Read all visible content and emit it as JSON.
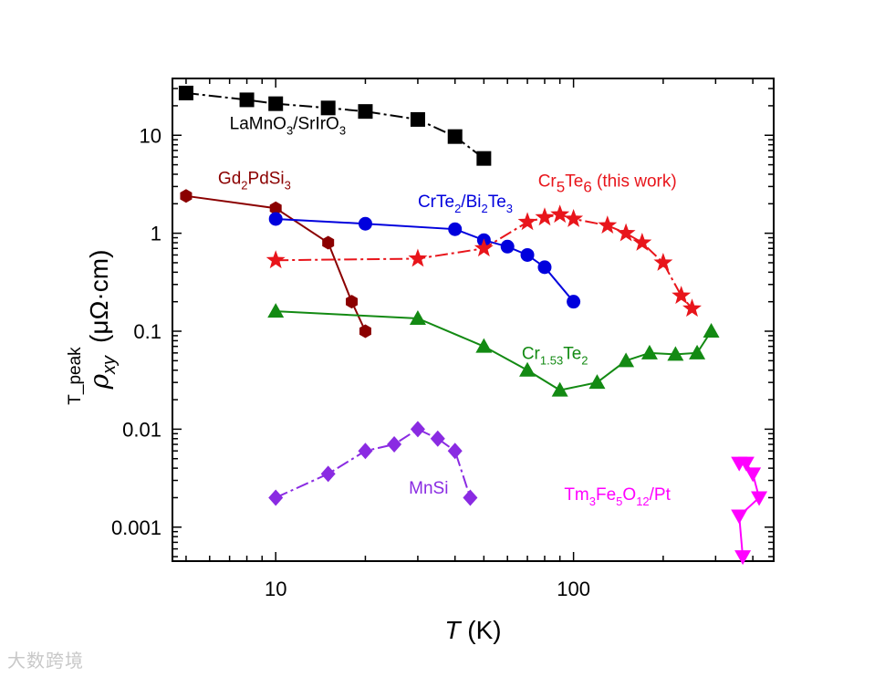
{
  "chart_data": {
    "type": "scatter",
    "title": "",
    "xlabel": "T (K)",
    "xlabel_italic_part": "T",
    "xlabel_unit_part": "(K)",
    "ylabel": "ρxy T_peak (μΩ·cm)",
    "ylabel_symbol": "ρ",
    "ylabel_subscript": "xy",
    "ylabel_superscript": "T_peak",
    "ylabel_unit": "(μΩ·cm)",
    "xscale": "log",
    "yscale": "log",
    "xlim": [
      4.5,
      470
    ],
    "ylim": [
      0.00045,
      38
    ],
    "x_ticks": [
      {
        "value": 10,
        "label": "10"
      },
      {
        "value": 100,
        "label": "100"
      }
    ],
    "y_ticks": [
      {
        "value": 0.001,
        "label": "0.001"
      },
      {
        "value": 0.01,
        "label": "0.01"
      },
      {
        "value": 0.1,
        "label": "0.1"
      },
      {
        "value": 1,
        "label": "1"
      },
      {
        "value": 10,
        "label": "10"
      }
    ],
    "series": [
      {
        "name": "LaMnO3/SrIrO3",
        "label_parts": [
          [
            "LaMnO",
            ""
          ],
          [
            "3",
            "sub"
          ],
          [
            "/SrIrO",
            ""
          ],
          [
            "3",
            "sub"
          ]
        ],
        "color": "#000000",
        "marker": "square",
        "line": "dashdot",
        "label_at": [
          7,
          11.5
        ],
        "x": [
          5,
          8,
          10,
          15,
          20,
          30,
          40,
          50
        ],
        "y": [
          27,
          23,
          21,
          19,
          17.5,
          14.5,
          9.7,
          5.8
        ]
      },
      {
        "name": "Gd2PdSi3",
        "label_parts": [
          [
            "Gd",
            ""
          ],
          [
            "2",
            "sub"
          ],
          [
            "PdSi",
            ""
          ],
          [
            "3",
            "sub"
          ]
        ],
        "color": "#8b0000",
        "marker": "hexagon",
        "line": "solid",
        "label_at": [
          6.4,
          3.2
        ],
        "x": [
          5,
          10,
          15,
          18,
          20
        ],
        "y": [
          2.4,
          1.8,
          0.8,
          0.2,
          0.1
        ]
      },
      {
        "name": "CrTe2/Bi2Te3",
        "label_parts": [
          [
            "CrTe",
            ""
          ],
          [
            "2",
            "sub"
          ],
          [
            "/Bi",
            ""
          ],
          [
            "2",
            "sub"
          ],
          [
            "Te",
            ""
          ],
          [
            "3",
            "sub"
          ]
        ],
        "color": "#0000dd",
        "marker": "circle",
        "line": "solid",
        "label_at": [
          30,
          1.85
        ],
        "x": [
          10,
          20,
          40,
          50,
          60,
          70,
          80,
          100
        ],
        "y": [
          1.4,
          1.25,
          1.1,
          0.85,
          0.73,
          0.6,
          0.45,
          0.2
        ]
      },
      {
        "name": "Cr5Te6 (this work)",
        "label_parts": [
          [
            "Cr",
            ""
          ],
          [
            "5",
            "sub"
          ],
          [
            "Te",
            ""
          ],
          [
            "6",
            "sub"
          ],
          [
            " (this work)",
            ""
          ]
        ],
        "color": "#e8151b",
        "marker": "star",
        "line": "dashdot",
        "label_at": [
          76,
          3.0
        ],
        "x": [
          10,
          30,
          50,
          70,
          80,
          90,
          100,
          130,
          150,
          170,
          200,
          230,
          250
        ],
        "y": [
          0.53,
          0.55,
          0.7,
          1.3,
          1.45,
          1.55,
          1.4,
          1.2,
          1.0,
          0.8,
          0.5,
          0.23,
          0.17
        ]
      },
      {
        "name": "Cr1.53Te2",
        "label_parts": [
          [
            "Cr",
            ""
          ],
          [
            "1.53",
            "sub"
          ],
          [
            "Te",
            ""
          ],
          [
            "2",
            "sub"
          ]
        ],
        "color": "#138a13",
        "marker": "triangle-up",
        "line": "solid",
        "label_at": [
          67,
          0.052
        ],
        "x": [
          10,
          30,
          50,
          70,
          90,
          120,
          150,
          180,
          220,
          260,
          290
        ],
        "y": [
          0.16,
          0.135,
          0.07,
          0.04,
          0.025,
          0.03,
          0.05,
          0.06,
          0.058,
          0.06,
          0.1
        ]
      },
      {
        "name": "MnSi",
        "label_parts": [
          [
            "MnSi",
            ""
          ]
        ],
        "color": "#8a2be2",
        "marker": "diamond",
        "line": "dashdot",
        "label_at": [
          28,
          0.0022
        ],
        "x": [
          10,
          15,
          20,
          25,
          30,
          35,
          40,
          45
        ],
        "y": [
          0.002,
          0.0035,
          0.006,
          0.007,
          0.01,
          0.008,
          0.006,
          0.002
        ]
      },
      {
        "name": "Tm3Fe5O12/Pt",
        "label_parts": [
          [
            "Tm",
            ""
          ],
          [
            "3",
            "sub"
          ],
          [
            "Fe",
            ""
          ],
          [
            "5",
            "sub"
          ],
          [
            "O",
            ""
          ],
          [
            "12",
            "sub"
          ],
          [
            "/Pt",
            ""
          ]
        ],
        "color": "#ff00ff",
        "marker": "triangle-down",
        "line": "solid",
        "label_at": [
          93,
          0.0019
        ],
        "x": [
          360,
          380,
          400,
          420,
          360,
          370
        ],
        "y": [
          0.0045,
          0.0045,
          0.0035,
          0.002,
          0.0013,
          0.0005
        ]
      }
    ]
  },
  "watermark": "大数跨境"
}
